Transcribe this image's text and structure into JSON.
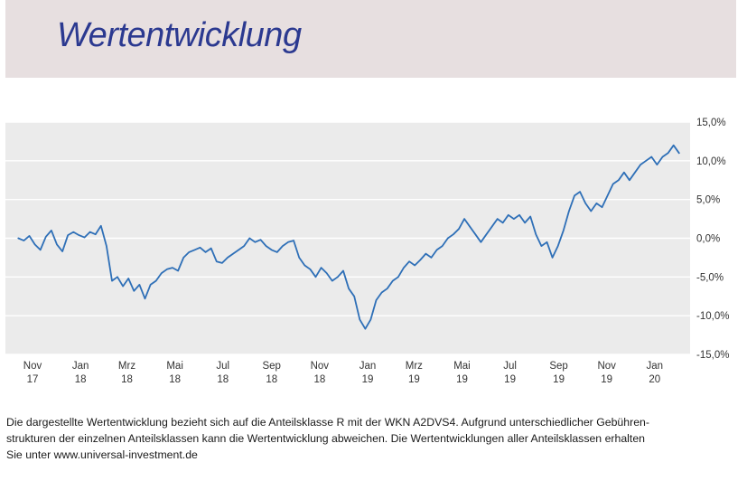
{
  "header": {
    "title": "Wertentwicklung"
  },
  "chart_data": {
    "type": "line",
    "title": "",
    "xlabel": "",
    "ylabel": "",
    "y_unit": "%",
    "ylim": [
      -15,
      15
    ],
    "y_ticks": [
      "15,0%",
      "10,0%",
      "5,0%",
      "0,0%",
      "-5,0%",
      "-10,0%",
      "-15,0%"
    ],
    "y_tick_values": [
      15,
      10,
      5,
      0,
      -5,
      -10,
      -15
    ],
    "y_axis_side": "right",
    "grid": true,
    "x_range": [
      "2017-11-01",
      "2020-02-15"
    ],
    "x_ticks": [
      {
        "date": "2017-11-01",
        "month": "Nov",
        "year": "17"
      },
      {
        "date": "2018-01-01",
        "month": "Jan",
        "year": "18"
      },
      {
        "date": "2018-03-01",
        "month": "Mrz",
        "year": "18"
      },
      {
        "date": "2018-05-01",
        "month": "Mai",
        "year": "18"
      },
      {
        "date": "2018-07-01",
        "month": "Jul",
        "year": "18"
      },
      {
        "date": "2018-09-01",
        "month": "Sep",
        "year": "18"
      },
      {
        "date": "2018-11-01",
        "month": "Nov",
        "year": "18"
      },
      {
        "date": "2019-01-01",
        "month": "Jan",
        "year": "19"
      },
      {
        "date": "2019-03-01",
        "month": "Mrz",
        "year": "19"
      },
      {
        "date": "2019-05-01",
        "month": "Mai",
        "year": "19"
      },
      {
        "date": "2019-07-01",
        "month": "Jul",
        "year": "19"
      },
      {
        "date": "2019-09-01",
        "month": "Sep",
        "year": "19"
      },
      {
        "date": "2019-11-01",
        "month": "Nov",
        "year": "19"
      },
      {
        "date": "2020-01-01",
        "month": "Jan",
        "year": "20"
      }
    ],
    "series": [
      {
        "line_color": "#2e6fb7",
        "points": [
          [
            "2017-10-14",
            0.0
          ],
          [
            "2017-10-21",
            -0.3
          ],
          [
            "2017-10-28",
            0.3
          ],
          [
            "2017-11-04",
            -0.8
          ],
          [
            "2017-11-11",
            -1.5
          ],
          [
            "2017-11-18",
            0.2
          ],
          [
            "2017-11-25",
            1.0
          ],
          [
            "2017-12-02",
            -0.8
          ],
          [
            "2017-12-09",
            -1.7
          ],
          [
            "2017-12-16",
            0.4
          ],
          [
            "2017-12-23",
            0.8
          ],
          [
            "2017-12-30",
            0.4
          ],
          [
            "2018-01-06",
            0.1
          ],
          [
            "2018-01-13",
            0.8
          ],
          [
            "2018-01-20",
            0.5
          ],
          [
            "2018-01-27",
            1.6
          ],
          [
            "2018-02-03",
            -1.0
          ],
          [
            "2018-02-10",
            -5.5
          ],
          [
            "2018-02-17",
            -5.0
          ],
          [
            "2018-02-24",
            -6.2
          ],
          [
            "2018-03-03",
            -5.2
          ],
          [
            "2018-03-10",
            -6.8
          ],
          [
            "2018-03-17",
            -6.0
          ],
          [
            "2018-03-24",
            -7.8
          ],
          [
            "2018-03-31",
            -6.0
          ],
          [
            "2018-04-07",
            -5.5
          ],
          [
            "2018-04-14",
            -4.5
          ],
          [
            "2018-04-21",
            -4.0
          ],
          [
            "2018-04-28",
            -3.8
          ],
          [
            "2018-05-05",
            -4.2
          ],
          [
            "2018-05-12",
            -2.5
          ],
          [
            "2018-05-19",
            -1.8
          ],
          [
            "2018-05-26",
            -1.5
          ],
          [
            "2018-06-02",
            -1.2
          ],
          [
            "2018-06-09",
            -1.8
          ],
          [
            "2018-06-16",
            -1.3
          ],
          [
            "2018-06-23",
            -3.0
          ],
          [
            "2018-06-30",
            -3.2
          ],
          [
            "2018-07-07",
            -2.5
          ],
          [
            "2018-07-14",
            -2.0
          ],
          [
            "2018-07-21",
            -1.5
          ],
          [
            "2018-07-28",
            -1.0
          ],
          [
            "2018-08-04",
            0.0
          ],
          [
            "2018-08-11",
            -0.5
          ],
          [
            "2018-08-18",
            -0.2
          ],
          [
            "2018-08-25",
            -1.0
          ],
          [
            "2018-09-01",
            -1.5
          ],
          [
            "2018-09-08",
            -1.8
          ],
          [
            "2018-09-15",
            -1.0
          ],
          [
            "2018-09-22",
            -0.5
          ],
          [
            "2018-09-29",
            -0.3
          ],
          [
            "2018-10-06",
            -2.5
          ],
          [
            "2018-10-13",
            -3.5
          ],
          [
            "2018-10-20",
            -4.0
          ],
          [
            "2018-10-27",
            -5.0
          ],
          [
            "2018-11-03",
            -3.8
          ],
          [
            "2018-11-10",
            -4.5
          ],
          [
            "2018-11-17",
            -5.5
          ],
          [
            "2018-11-24",
            -5.0
          ],
          [
            "2018-12-01",
            -4.2
          ],
          [
            "2018-12-08",
            -6.5
          ],
          [
            "2018-12-15",
            -7.5
          ],
          [
            "2018-12-22",
            -10.5
          ],
          [
            "2018-12-29",
            -11.7
          ],
          [
            "2019-01-05",
            -10.5
          ],
          [
            "2019-01-12",
            -8.0
          ],
          [
            "2019-01-19",
            -7.0
          ],
          [
            "2019-01-26",
            -6.5
          ],
          [
            "2019-02-02",
            -5.5
          ],
          [
            "2019-02-09",
            -5.0
          ],
          [
            "2019-02-16",
            -3.8
          ],
          [
            "2019-02-23",
            -3.0
          ],
          [
            "2019-03-02",
            -3.5
          ],
          [
            "2019-03-09",
            -2.8
          ],
          [
            "2019-03-16",
            -2.0
          ],
          [
            "2019-03-23",
            -2.5
          ],
          [
            "2019-03-30",
            -1.5
          ],
          [
            "2019-04-06",
            -1.0
          ],
          [
            "2019-04-13",
            0.0
          ],
          [
            "2019-04-20",
            0.5
          ],
          [
            "2019-04-27",
            1.2
          ],
          [
            "2019-05-04",
            2.5
          ],
          [
            "2019-05-11",
            1.5
          ],
          [
            "2019-05-18",
            0.5
          ],
          [
            "2019-05-25",
            -0.5
          ],
          [
            "2019-06-01",
            0.5
          ],
          [
            "2019-06-08",
            1.5
          ],
          [
            "2019-06-15",
            2.5
          ],
          [
            "2019-06-22",
            2.0
          ],
          [
            "2019-06-29",
            3.0
          ],
          [
            "2019-07-06",
            2.5
          ],
          [
            "2019-07-13",
            3.0
          ],
          [
            "2019-07-20",
            2.0
          ],
          [
            "2019-07-27",
            2.8
          ],
          [
            "2019-08-03",
            0.5
          ],
          [
            "2019-08-10",
            -1.0
          ],
          [
            "2019-08-17",
            -0.5
          ],
          [
            "2019-08-24",
            -2.5
          ],
          [
            "2019-08-31",
            -1.0
          ],
          [
            "2019-09-07",
            1.0
          ],
          [
            "2019-09-14",
            3.5
          ],
          [
            "2019-09-21",
            5.5
          ],
          [
            "2019-09-28",
            6.0
          ],
          [
            "2019-10-05",
            4.5
          ],
          [
            "2019-10-12",
            3.5
          ],
          [
            "2019-10-19",
            4.5
          ],
          [
            "2019-10-26",
            4.0
          ],
          [
            "2019-11-02",
            5.5
          ],
          [
            "2019-11-09",
            7.0
          ],
          [
            "2019-11-16",
            7.5
          ],
          [
            "2019-11-23",
            8.5
          ],
          [
            "2019-11-30",
            7.5
          ],
          [
            "2019-12-07",
            8.5
          ],
          [
            "2019-12-14",
            9.5
          ],
          [
            "2019-12-21",
            10.0
          ],
          [
            "2019-12-28",
            10.5
          ],
          [
            "2020-01-04",
            9.5
          ],
          [
            "2020-01-11",
            10.5
          ],
          [
            "2020-01-18",
            11.0
          ],
          [
            "2020-01-25",
            12.0
          ],
          [
            "2020-02-01",
            11.0
          ]
        ]
      }
    ]
  },
  "footnote": {
    "line1": "Die dargestellte Wertentwicklung bezieht sich auf die Anteilsklasse R mit der WKN A2DVS4. Aufgrund unterschiedlicher Gebühren-",
    "line2": "strukturen der einzelnen Anteilsklassen kann die Wertentwicklung abweichen. Die Wertentwicklungen aller Anteilsklassen erhalten",
    "line3": "Sie unter www.universal-investment.de"
  },
  "colors": {
    "header_background": "#e7dfe0",
    "title_color": "#2b3990",
    "plot_background": "#ebebeb",
    "line": "#2e6fb7"
  }
}
